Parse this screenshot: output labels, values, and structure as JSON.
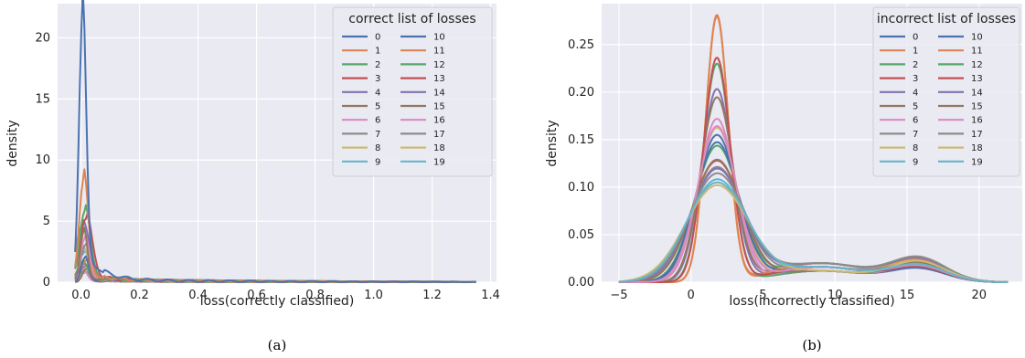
{
  "colors": [
    "#4c72b0",
    "#dd8452",
    "#55a868",
    "#c44e52",
    "#8172b3",
    "#937860",
    "#da8bc3",
    "#8c8c8c",
    "#ccb974",
    "#64b5cd"
  ],
  "chart_data": [
    {
      "type": "line",
      "caption": "(a)",
      "xlabel": "loss(correctly classified)",
      "ylabel": "density",
      "xlim": [
        -0.08,
        1.42
      ],
      "ylim": [
        0,
        22.8
      ],
      "xticks": [
        0.0,
        0.2,
        0.4,
        0.6,
        0.8,
        1.0,
        1.2,
        1.4
      ],
      "xtick_labels": [
        "0.0",
        "0.2",
        "0.4",
        "0.6",
        "0.8",
        "1.0",
        "1.2",
        "1.4"
      ],
      "yticks": [
        0,
        5,
        10,
        15,
        20
      ],
      "ytick_labels": [
        "0",
        "5",
        "10",
        "15",
        "20"
      ],
      "grid": true,
      "legend": {
        "title": "correct list of losses",
        "placement": "top-right",
        "ncol": 2
      },
      "series_names": [
        "0",
        "1",
        "2",
        "3",
        "4",
        "5",
        "6",
        "7",
        "8",
        "9",
        "10",
        "11",
        "12",
        "13",
        "14",
        "15",
        "16",
        "17",
        "18",
        "19"
      ],
      "peak_x": 0.005,
      "peaks": [
        21.6,
        8.4,
        5.8,
        5.2,
        4.6,
        4.1,
        3.6,
        3.1,
        2.7,
        2.3,
        2.0,
        1.8,
        1.6,
        1.4,
        1.25,
        1.1,
        1.0,
        0.9,
        0.85,
        0.8
      ],
      "tail_end": 1.35
    },
    {
      "type": "line",
      "caption": "(b)",
      "xlabel": "loss(incorrectly classified)",
      "ylabel": "density",
      "xlim": [
        -6.2,
        23
      ],
      "ylim": [
        0,
        0.293
      ],
      "xticks": [
        -5,
        0,
        5,
        10,
        15,
        20
      ],
      "xtick_labels": [
        "−5",
        "0",
        "5",
        "10",
        "15",
        "20"
      ],
      "yticks": [
        0.0,
        0.05,
        0.1,
        0.15,
        0.2,
        0.25
      ],
      "ytick_labels": [
        "0.00",
        "0.05",
        "0.10",
        "0.15",
        "0.20",
        "0.25"
      ],
      "grid": true,
      "legend": {
        "title": "incorrect list of losses",
        "placement": "top-right",
        "ncol": 2
      },
      "series_names": [
        "0",
        "1",
        "2",
        "3",
        "4",
        "5",
        "6",
        "7",
        "8",
        "9",
        "10",
        "11",
        "12",
        "13",
        "14",
        "15",
        "16",
        "17",
        "18",
        "19"
      ],
      "main_peak_x": 1.8,
      "peaks": [
        0.154,
        0.28,
        0.142,
        0.127,
        0.202,
        0.193,
        0.171,
        0.12,
        0.161,
        0.104,
        0.146,
        0.278,
        0.229,
        0.235,
        0.118,
        0.128,
        0.163,
        0.113,
        0.101,
        0.107
      ],
      "second_bump_x": 15.8,
      "second_bump_peak": 0.025,
      "x_range": [
        -5,
        22
      ]
    }
  ]
}
